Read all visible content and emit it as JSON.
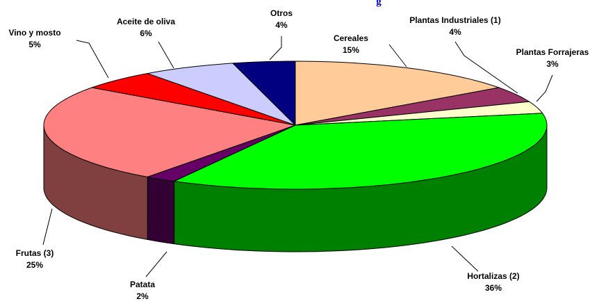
{
  "chart_data": {
    "type": "pie3d",
    "title": "g",
    "categories": [
      "Cereales",
      "Plantas Industriales (1)",
      "Plantas Forrajeras",
      "Hortalizas (2)",
      "Patata",
      "Frutas (3)",
      "Vino y mosto",
      "Aceite de oliva",
      "Otros"
    ],
    "values": [
      15,
      4,
      3,
      36,
      2,
      25,
      5,
      6,
      4
    ],
    "value_labels": [
      "15%",
      "4%",
      "3%",
      "36%",
      "2%",
      "25%",
      "5%",
      "6%",
      "4%"
    ],
    "colors": [
      "#FFCC99",
      "#993366",
      "#FFFFCC",
      "#00FF00",
      "#660066",
      "#FF8080",
      "#FF0000",
      "#CCCCFF",
      "#000080"
    ]
  }
}
